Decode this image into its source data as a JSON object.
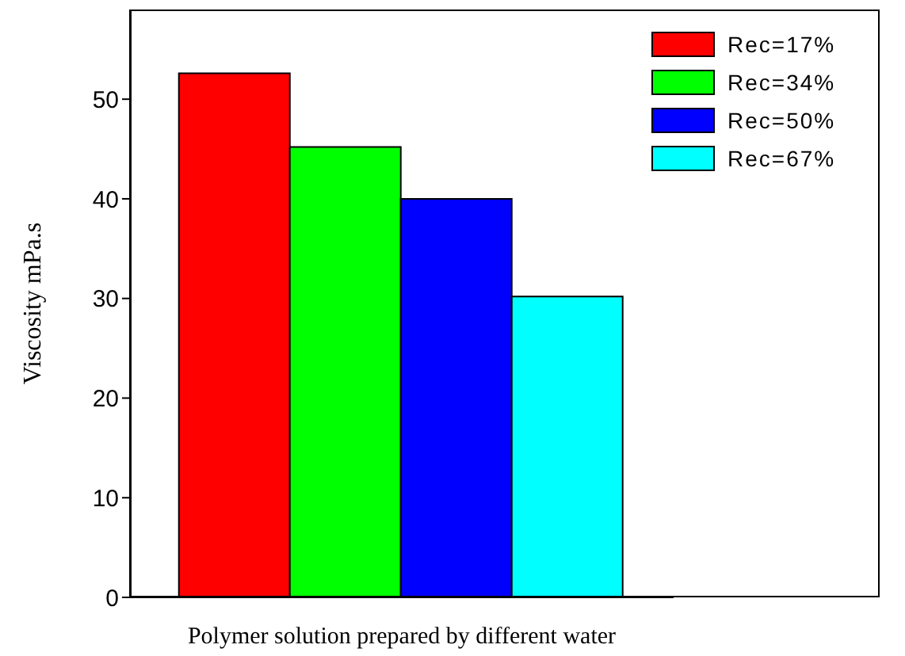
{
  "chart_data": {
    "type": "bar",
    "xlabel": "Polymer solution prepared by different water",
    "ylabel": "Viscosity mPa.s",
    "categories": [
      null
    ],
    "series": [
      {
        "name": "Rec=17%",
        "color": "#ff0000",
        "values": [
          52.6
        ]
      },
      {
        "name": "Rec=34%",
        "color": "#00ff00",
        "values": [
          45.2
        ]
      },
      {
        "name": "Rec=50%",
        "color": "#0000ff",
        "values": [
          40.0
        ]
      },
      {
        "name": "Rec=67%",
        "color": "#00ffff",
        "values": [
          30.2
        ]
      }
    ],
    "ylim": [
      0,
      59
    ],
    "yticks": [
      0,
      10,
      20,
      30,
      40,
      50
    ],
    "grid": false,
    "legend": "top right"
  }
}
